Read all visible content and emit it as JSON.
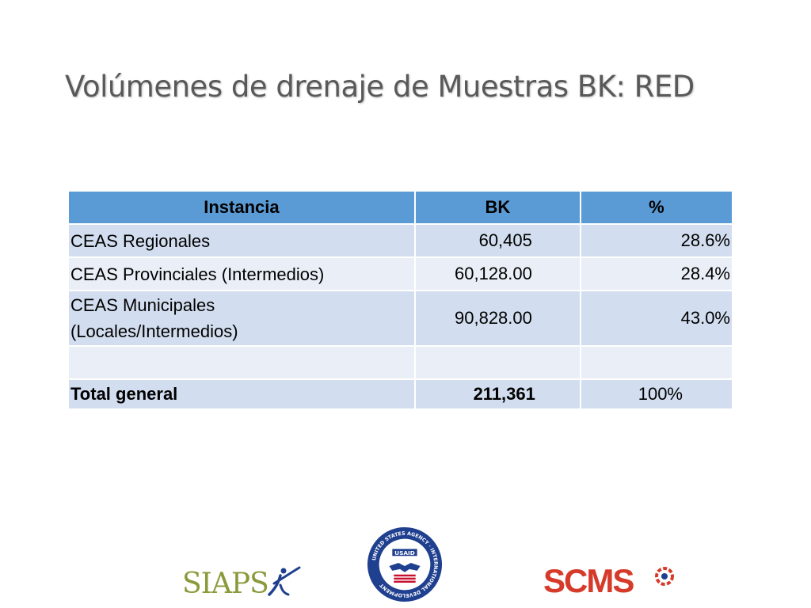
{
  "slide": {
    "title": "Volúmenes de drenaje de Muestras BK: RED"
  },
  "table": {
    "headers": [
      "Instancia",
      "BK",
      "%"
    ],
    "rows": [
      {
        "instancia_line1": "CEAS Regionales",
        "instancia_line2": "",
        "bk": "60,405",
        "pct": "28.6%"
      },
      {
        "instancia_line1": "CEAS Provinciales (Intermedios)",
        "instancia_line2": "",
        "bk": "60,128.00",
        "pct": "28.4%"
      },
      {
        "instancia_line1": "CEAS Municipales",
        "instancia_line2": "(Locales/Intermedios)",
        "bk": "90,828.00",
        "pct": "43.0%"
      },
      {
        "instancia_line1": "",
        "instancia_line2": "",
        "bk": "",
        "pct": ""
      }
    ],
    "total": {
      "label": "Total general",
      "bk": "211,361",
      "pct": "100%"
    }
  },
  "logos": {
    "siaps": "SIAPS",
    "usaid_ring": "UNITED STATES AGENCY · INTERNATIONAL DEVELOPMENT",
    "usaid_word": "USAID",
    "scms": "SCMS"
  },
  "colors": {
    "title": "#595959",
    "header_fill": "#5b9bd5",
    "row_odd": "#d2deef",
    "row_even": "#eaeff7",
    "siaps_green": "#8a9a3a",
    "usaid_blue": "#1f3f8f",
    "scms_red": "#d63a2a"
  }
}
